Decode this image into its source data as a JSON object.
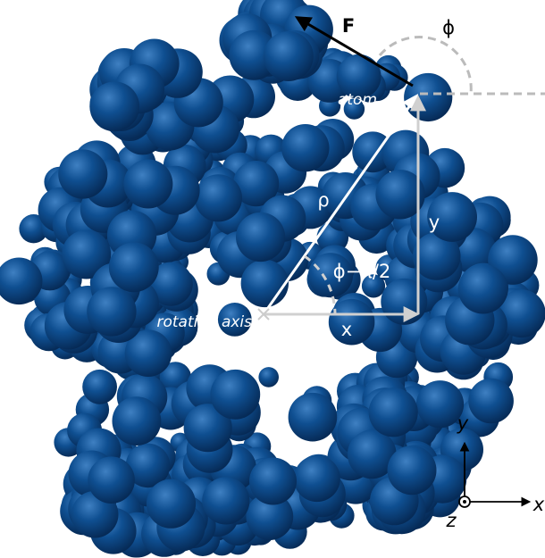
{
  "labels": {
    "force": "F",
    "phi": "ϕ",
    "atom": "atom",
    "rho": "ρ",
    "y_component": "y",
    "angle": "ϕ−π/2",
    "rotation_axis": "rotation axis",
    "x_component": "x"
  },
  "axes": {
    "y": "y",
    "x": "x",
    "z": "z"
  }
}
